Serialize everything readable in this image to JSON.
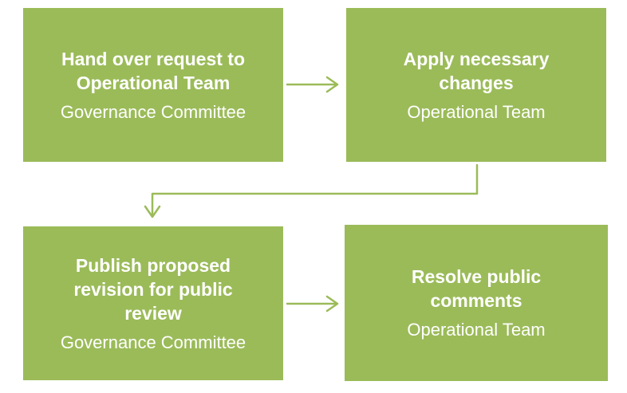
{
  "diagram": {
    "colors": {
      "box_fill": "#9bbb59",
      "arrow": "#9bbb59",
      "text": "#ffffff"
    },
    "steps": [
      {
        "title_lines": [
          "Hand over request to",
          "Operational Team"
        ],
        "owner": "Governance Committee"
      },
      {
        "title_lines": [
          "Apply necessary",
          "changes"
        ],
        "owner": "Operational Team"
      },
      {
        "title_lines": [
          "Publish proposed",
          "revision for public",
          "review"
        ],
        "owner": "Governance Committee"
      },
      {
        "title_lines": [
          "Resolve public",
          "comments"
        ],
        "owner": "Operational Team"
      }
    ]
  }
}
